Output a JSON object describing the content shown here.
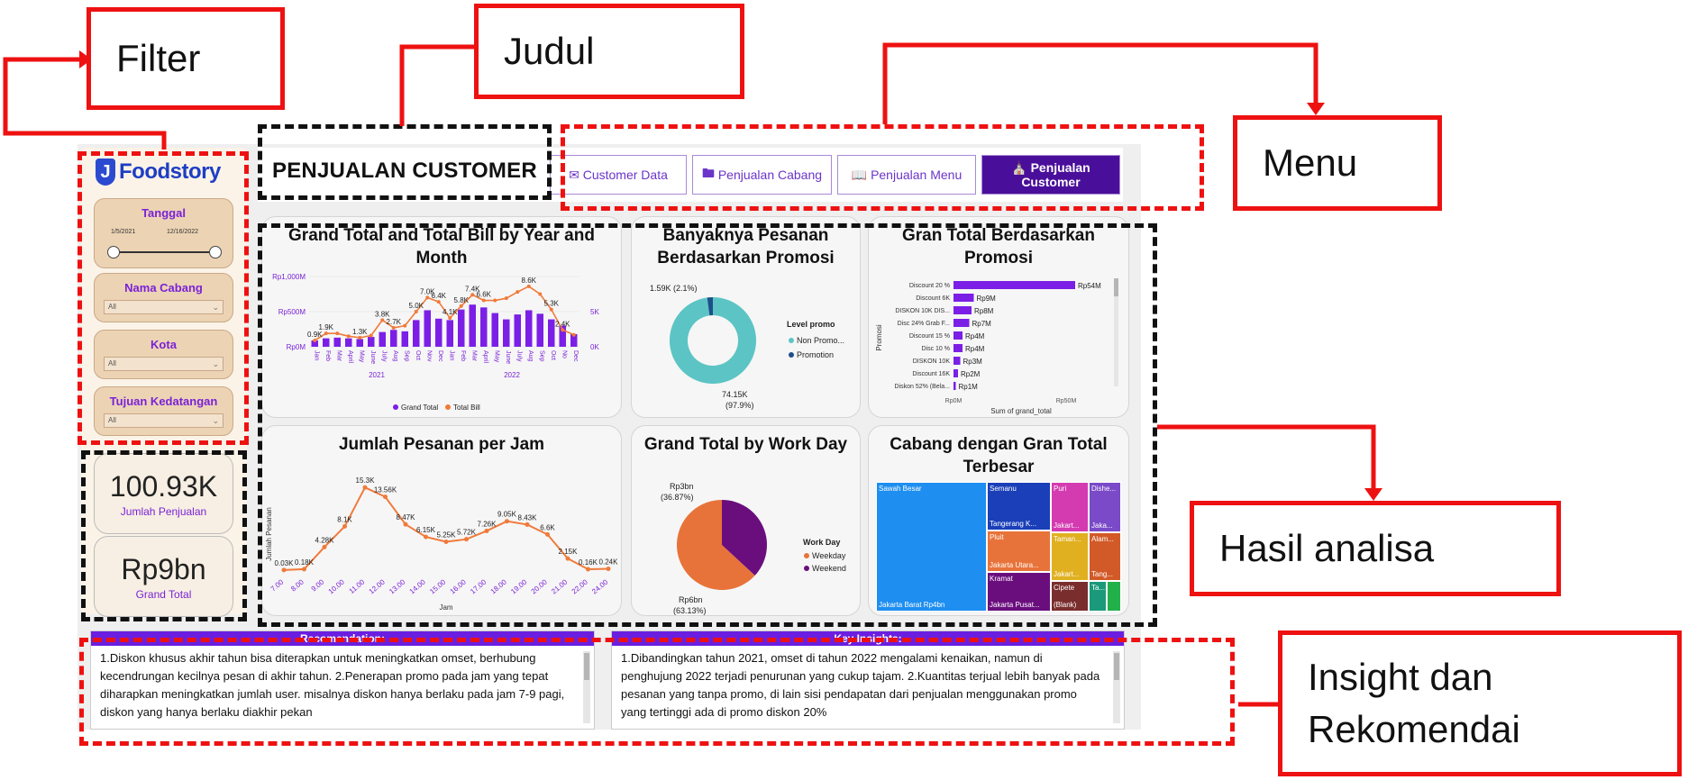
{
  "colors": {
    "accent": "#6a1fe0",
    "nav_active": "#4a0f9a",
    "bar": "#7b1fe6",
    "line": "#f07a3a",
    "donut_main": "#5cc4c4",
    "donut_promo": "#1d4f8a",
    "pie_weekday": "#e8733a",
    "pie_weekend": "#6a0e7e",
    "callout_red": "#ee1111",
    "outline_black": "#111111"
  },
  "callouts": {
    "filter": "Filter",
    "judul": "Judul",
    "menu": "Menu",
    "hasil": "Hasil analisa",
    "insight_line1": "Insight dan",
    "insight_line2": "Rekomendai"
  },
  "logo": {
    "text": "Foodstory",
    "icon": "foodstory-logo-icon"
  },
  "filters": {
    "tanggal": {
      "label": "Tanggal",
      "start": "1/5/2021",
      "end": "12/16/2022"
    },
    "cabang": {
      "label": "Nama Cabang",
      "value": "All"
    },
    "kota": {
      "label": "Kota",
      "value": "All"
    },
    "tujuan": {
      "label": "Tujuan Kedatangan",
      "value": "All"
    }
  },
  "kpis": {
    "jumlah_value": "100.93K",
    "jumlah_label": "Jumlah Penjualan",
    "grand_value": "Rp9bn",
    "grand_label": "Grand Total"
  },
  "page_title": "PENJUALAN CUSTOMER",
  "nav": {
    "customer_data": "Customer Data",
    "cabang": "Penjualan Cabang",
    "menu": "Penjualan Menu",
    "customer_line1": "Penjualan",
    "customer_line2": "Customer",
    "icons": {
      "customer_data": "mail-icon",
      "cabang": "folder-icon",
      "menu": "book-icon",
      "customer": "store-icon"
    }
  },
  "cards": {
    "c1": "Grand Total and Total Bill by Year and Month",
    "c2": "Banyaknya Pesanan Berdasarkan Promosi",
    "c3": "Gran Total Berdasarkan Promosi",
    "c4": "Jumlah Pesanan per Jam",
    "c5": "Grand Total by Work Day",
    "c6": "Cabang dengan Gran Total Terbesar"
  },
  "chart_data": [
    {
      "type": "bar",
      "title": "Grand Total and Total Bill by Year and Month",
      "categories": [
        "Jan",
        "Feb",
        "Mar",
        "April",
        "May",
        "June",
        "July",
        "Aug",
        "Sep",
        "Oct",
        "Nov",
        "Dec",
        "Jan",
        "Feb",
        "Mar",
        "April",
        "May",
        "June",
        "July",
        "Aug",
        "Sep",
        "Oct",
        "No",
        "Dec"
      ],
      "year_labels": [
        "2021",
        "2022"
      ],
      "y_left_ticks": [
        "Rp0M",
        "Rp500M",
        "Rp1,000M"
      ],
      "y_right_ticks": [
        "0K",
        "5K"
      ],
      "series": [
        {
          "name": "Grand Total",
          "values": [
            90,
            120,
            130,
            120,
            110,
            140,
            210,
            240,
            220,
            380,
            520,
            400,
            380,
            530,
            600,
            560,
            480,
            390,
            460,
            520,
            470,
            390,
            300,
            180
          ]
        },
        {
          "name": "Total Bill",
          "values": [
            0.9,
            1.9,
            1.9,
            1.5,
            1.3,
            1.6,
            3.8,
            2.7,
            3.0,
            5.0,
            7.0,
            6.4,
            4.1,
            5.8,
            7.4,
            6.6,
            6.6,
            6.9,
            7.8,
            8.6,
            7.5,
            5.3,
            2.4,
            1.7
          ]
        }
      ],
      "data_labels": [
        "0.9K",
        "1.9K",
        "1.3K",
        "3.8K",
        "2.7K",
        "5.0K",
        "7.0K",
        "6.4K",
        "4.1K",
        "5.8K",
        "7.4K",
        "6.6K",
        "8.6K",
        "5.3K",
        "2.4K"
      ],
      "legend": [
        "Grand Total",
        "Total Bill"
      ]
    },
    {
      "type": "pie",
      "title": "Banyaknya Pesanan Berdasarkan Promosi",
      "legend_title": "Level promo",
      "series": [
        {
          "name": "Non Promo...",
          "value": 74150,
          "label": "74.15K (97.9%)"
        },
        {
          "name": "Promotion",
          "value": 1590,
          "label": "1.59K (2.1%)"
        }
      ]
    },
    {
      "type": "bar",
      "title": "Gran Total Berdasarkan Promosi",
      "categories": [
        "Discount 20 %",
        "Discount 6K",
        "DISKON 10K DIS...",
        "Disc 24% Grab F...",
        "Discount 15 %",
        "Disc 10 %",
        "DISKON 10K",
        "Discount 16K",
        "Diskon 52% (Bela..."
      ],
      "values": [
        54,
        9,
        8,
        7,
        4,
        4,
        3,
        2,
        1
      ],
      "data_labels": [
        "Rp54M",
        "Rp9M",
        "Rp8M",
        "Rp7M",
        "Rp4M",
        "Rp4M",
        "Rp3M",
        "Rp2M",
        "Rp1M"
      ],
      "xlabel": "Sum of grand_total",
      "ylabel": "Promosi",
      "x_ticks": [
        "Rp0M",
        "Rp50M"
      ]
    },
    {
      "type": "line",
      "title": "Jumlah Pesanan per Jam",
      "x": [
        "7.00",
        "8.00",
        "9.00",
        "10.00",
        "11.00",
        "12.00",
        "13.00",
        "14.00",
        "15.00",
        "16.00",
        "17.00",
        "18.00",
        "19.00",
        "20.00",
        "21.00",
        "22.00",
        "24.00"
      ],
      "values": [
        0.03,
        0.18,
        4.28,
        8.1,
        15.3,
        13.56,
        8.47,
        6.15,
        5.25,
        5.72,
        7.26,
        9.05,
        8.43,
        6.6,
        2.15,
        0.16,
        0.24
      ],
      "data_labels": [
        "0.03K",
        "0.18K",
        "4.28K",
        "8.1K",
        "15.3K",
        "13.56K",
        "8.47K",
        "6.15K",
        "5.25K",
        "5.72K",
        "7.26K",
        "9.05K",
        "8.43K",
        "6.6K",
        "2.15K",
        "0.16K",
        "0.24K"
      ],
      "xlabel": "Jam",
      "ylabel": "Jumlah Pesanan"
    },
    {
      "type": "pie",
      "title": "Grand Total by Work Day",
      "legend_title": "Work Day",
      "series": [
        {
          "name": "Weekday",
          "value": 63.13,
          "label": "Rp6bn (63.13%)"
        },
        {
          "name": "Weekend",
          "value": 36.87,
          "label": "Rp3bn (36.87%)"
        }
      ]
    },
    {
      "type": "heatmap",
      "title": "Cabang dengan Gran Total Terbesar",
      "tiles": [
        {
          "name": "Sawah Besar",
          "label": "Jakarta Barat Rp4bn"
        },
        {
          "name": "Semanu",
          "label": "Tangerang K..."
        },
        {
          "name": "Pluit",
          "label": "Jakarta Utara..."
        },
        {
          "name": "Kramat",
          "label": "Jakarta Pusat..."
        },
        {
          "name": "Puri",
          "label": "Jakart..."
        },
        {
          "name": "Taman...",
          "label": "Jakart..."
        },
        {
          "name": "Cipete",
          "label": "(Blank)"
        },
        {
          "name": "Dishe...",
          "label": "Jaka..."
        },
        {
          "name": "Alam...",
          "label": "Tang..."
        },
        {
          "name": "Ta...",
          "label": ""
        }
      ]
    }
  ],
  "insights": {
    "recommendation_title": "Recomendation:",
    "recommendation_text": "1.Diskon khusus akhir tahun bisa diterapkan untuk meningkatkan omset, berhubung kecendrungan kecilnya pesan di akhir tahun. 2.Penerapan promo pada jam yang tepat diharapkan meningkatkan jumlah user. misalnya diskon hanya berlaku pada jam 7-9 pagi, diskon yang hanya berlaku diakhir pekan",
    "key_title": "Key Insights:",
    "key_text": "1.Dibandingkan tahun 2021, omset di tahun 2022 mengalami kenaikan, namun di penghujung 2022 terjadi penurunan yang cukup tajam. 2.Kuantitas terjual lebih banyak pada pesanan yang tanpa promo, di lain sisi pendapatan dari penjualan menggunakan promo yang tertinggi ada di promo diskon 20%"
  }
}
